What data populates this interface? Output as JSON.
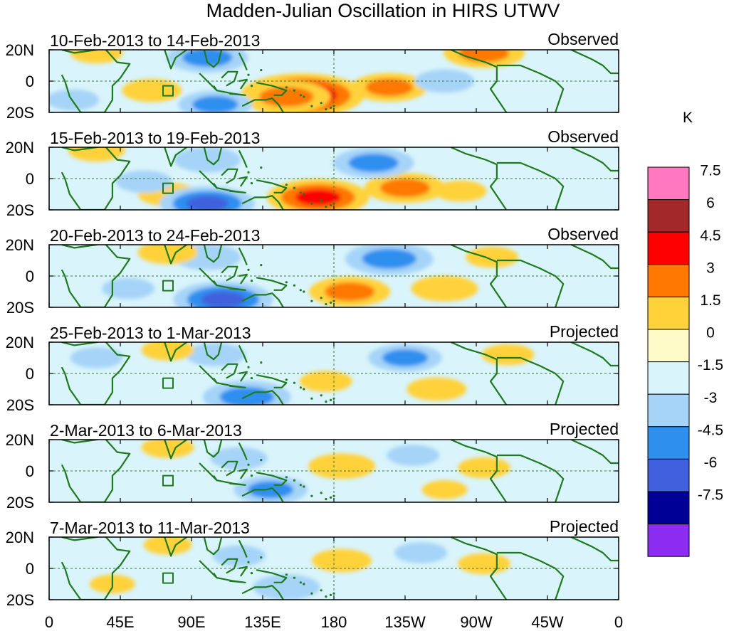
{
  "chart_data": {
    "type": "heatmap",
    "title": "Madden-Julian Oscillation in HIRS UTWV",
    "units": "K",
    "x_ticks": [
      "0",
      "45E",
      "90E",
      "135E",
      "180",
      "135W",
      "90W",
      "45W",
      "0"
    ],
    "x_range_deg_east": [
      0,
      360
    ],
    "y_ticks": [
      "20N",
      "0",
      "20S"
    ],
    "y_range_deg": [
      -20,
      20
    ],
    "colorbar": {
      "levels": [
        "7.5",
        "6",
        "4.5",
        "3",
        "1.5",
        "0",
        "-1.5",
        "-3",
        "-4.5",
        "-6",
        "-7.5"
      ],
      "colors": [
        "#ff78c0",
        "#a3282a",
        "#ff0000",
        "#ff7800",
        "#ffd23a",
        "#fffbc8",
        "#d9f4fb",
        "#a6d4f8",
        "#2e8fef",
        "#4060dd",
        "#000096",
        "#8c2cf0"
      ]
    },
    "panels": [
      {
        "period": "10-Feb-2013 to 14-Feb-2013",
        "label": "Observed",
        "anomalies": [
          {
            "lon": 160,
            "lat": -9,
            "value": 6.5
          },
          {
            "lon": 150,
            "lat": -10,
            "value": 4.0
          },
          {
            "lon": 215,
            "lat": -4,
            "value": 3.2
          },
          {
            "lon": 275,
            "lat": 18,
            "value": 3.5
          },
          {
            "lon": 65,
            "lat": -6,
            "value": 2.0
          },
          {
            "lon": 30,
            "lat": 18,
            "value": 1.5
          },
          {
            "lon": 100,
            "lat": 15,
            "value": -3.5
          },
          {
            "lon": 105,
            "lat": -15,
            "value": -3.0
          },
          {
            "lon": 250,
            "lat": 0,
            "value": -2.0
          },
          {
            "lon": 15,
            "lat": -12,
            "value": -1.5
          }
        ]
      },
      {
        "period": "15-Feb-2013 to 19-Feb-2013",
        "label": "Observed",
        "anomalies": [
          {
            "lon": 170,
            "lat": -12,
            "value": 5.0
          },
          {
            "lon": 225,
            "lat": -6,
            "value": 3.5
          },
          {
            "lon": 260,
            "lat": -8,
            "value": 1.5
          },
          {
            "lon": 75,
            "lat": -10,
            "value": 2.0
          },
          {
            "lon": 30,
            "lat": 18,
            "value": 1.8
          },
          {
            "lon": 100,
            "lat": -16,
            "value": -4.5
          },
          {
            "lon": 205,
            "lat": 10,
            "value": -3.5
          },
          {
            "lon": 100,
            "lat": 12,
            "value": -2.5
          },
          {
            "lon": 60,
            "lat": -2,
            "value": -1.8
          }
        ]
      },
      {
        "period": "20-Feb-2013 to 24-Feb-2013",
        "label": "Observed",
        "anomalies": [
          {
            "lon": 110,
            "lat": -15,
            "value": -4.8
          },
          {
            "lon": 215,
            "lat": 11,
            "value": -4.0
          },
          {
            "lon": 100,
            "lat": 12,
            "value": -2.5
          },
          {
            "lon": 50,
            "lat": -8,
            "value": -1.5
          },
          {
            "lon": 190,
            "lat": -10,
            "value": 3.5
          },
          {
            "lon": 250,
            "lat": -8,
            "value": 2.5
          },
          {
            "lon": 75,
            "lat": 15,
            "value": 2.0
          },
          {
            "lon": 280,
            "lat": 12,
            "value": 1.5
          }
        ]
      },
      {
        "period": "25-Feb-2013 to 1-Mar-2013",
        "label": "Projected",
        "anomalies": [
          {
            "lon": 125,
            "lat": -15,
            "value": -4.0
          },
          {
            "lon": 225,
            "lat": 10,
            "value": -3.0
          },
          {
            "lon": 105,
            "lat": 12,
            "value": -2.0
          },
          {
            "lon": 30,
            "lat": 10,
            "value": -1.5
          },
          {
            "lon": 245,
            "lat": -10,
            "value": 2.0
          },
          {
            "lon": 175,
            "lat": -5,
            "value": 1.5
          },
          {
            "lon": 75,
            "lat": 15,
            "value": 1.5
          },
          {
            "lon": 290,
            "lat": 12,
            "value": 1.5
          }
        ]
      },
      {
        "period": "2-Mar-2013 to 6-Mar-2013",
        "label": "Projected",
        "anomalies": [
          {
            "lon": 140,
            "lat": -12,
            "value": -3.0
          },
          {
            "lon": 120,
            "lat": 8,
            "value": -1.8
          },
          {
            "lon": 230,
            "lat": 10,
            "value": -1.5
          },
          {
            "lon": 185,
            "lat": 3,
            "value": 2.5
          },
          {
            "lon": 275,
            "lat": 2,
            "value": 1.5
          },
          {
            "lon": 75,
            "lat": 15,
            "value": 1.5
          },
          {
            "lon": 250,
            "lat": -12,
            "value": 1.0
          }
        ]
      },
      {
        "period": "7-Mar-2013 to 11-Mar-2013",
        "label": "Projected",
        "anomalies": [
          {
            "lon": 150,
            "lat": -12,
            "value": -2.5
          },
          {
            "lon": 120,
            "lat": 8,
            "value": -1.5
          },
          {
            "lon": 235,
            "lat": 10,
            "value": -1.5
          },
          {
            "lon": 185,
            "lat": 5,
            "value": 2.0
          },
          {
            "lon": 275,
            "lat": 3,
            "value": 1.5
          },
          {
            "lon": 75,
            "lat": 15,
            "value": 1.2
          },
          {
            "lon": 40,
            "lat": -10,
            "value": 1.0
          }
        ]
      }
    ]
  }
}
